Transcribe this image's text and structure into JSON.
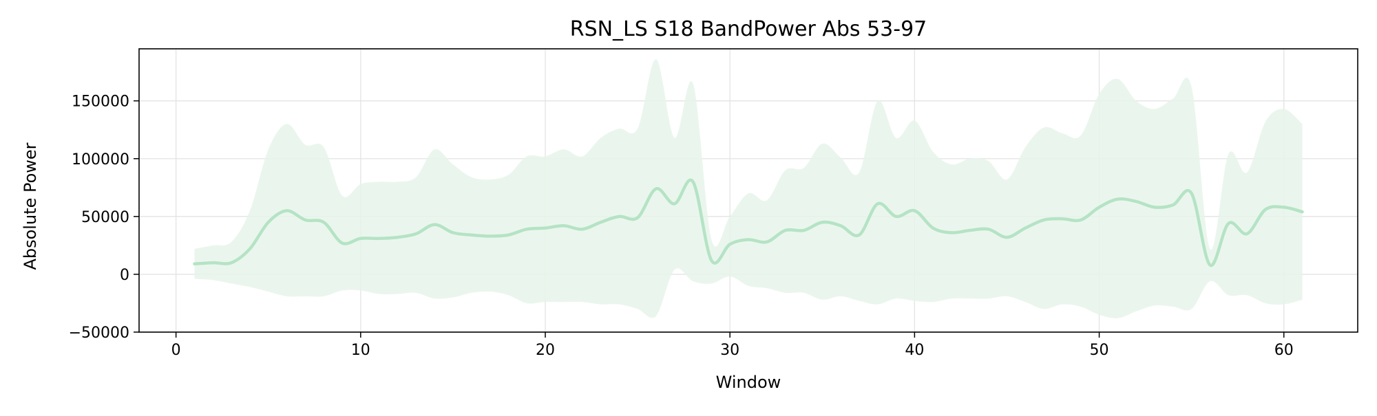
{
  "chart_data": {
    "type": "line",
    "title": "RSN_LS S18 BandPower Abs 53-97",
    "xlabel": "Window",
    "ylabel": "Absolute Power",
    "xlim": [
      -2,
      64
    ],
    "ylim": [
      -50000,
      195000
    ],
    "x_ticks": [
      0,
      10,
      20,
      30,
      40,
      50,
      60
    ],
    "x_tick_labels": [
      "0",
      "10",
      "20",
      "30",
      "40",
      "50",
      "60"
    ],
    "y_ticks": [
      -50000,
      0,
      50000,
      100000,
      150000
    ],
    "y_tick_labels": [
      "−50000",
      "0",
      "50000",
      "100000",
      "150000"
    ],
    "grid": true,
    "legend": "none",
    "colors": {
      "line": "#b5e3c5",
      "band": "#e6f4ea",
      "grid": "#e3e3e3",
      "axis": "#000000"
    },
    "series": [
      {
        "x": [
          1,
          2,
          3,
          4,
          5,
          6,
          7,
          8,
          9,
          10,
          11,
          12,
          13,
          14,
          15,
          16,
          17,
          18,
          19,
          20,
          21,
          22,
          23,
          24,
          25,
          26,
          27,
          28,
          29,
          30,
          31,
          32,
          33,
          34,
          35,
          36,
          37,
          38,
          39,
          40,
          41,
          42,
          43,
          44,
          45,
          46,
          47,
          48,
          49,
          50,
          51,
          52,
          53,
          54,
          55,
          56,
          57,
          58,
          59,
          60,
          61
        ],
        "mean": [
          9000,
          10000,
          10000,
          22000,
          45000,
          55000,
          47000,
          45000,
          27000,
          31000,
          31000,
          32000,
          35000,
          43000,
          36000,
          34000,
          33000,
          34000,
          39000,
          40000,
          42000,
          39000,
          45000,
          50000,
          49000,
          74000,
          61000,
          80000,
          12000,
          26000,
          30000,
          28000,
          38000,
          38000,
          45000,
          42000,
          34000,
          61000,
          50000,
          55000,
          40000,
          36000,
          38000,
          39000,
          32000,
          40000,
          47000,
          48000,
          47000,
          58000,
          65000,
          63000,
          58000,
          60000,
          70000,
          8000,
          44000,
          35000,
          56000,
          58000,
          54000
        ],
        "upper": [
          22000,
          25000,
          28000,
          55000,
          108000,
          130000,
          112000,
          110000,
          68000,
          78000,
          80000,
          80000,
          84000,
          108000,
          95000,
          84000,
          82000,
          86000,
          102000,
          102000,
          108000,
          102000,
          118000,
          126000,
          126000,
          186000,
          118000,
          165000,
          30000,
          50000,
          70000,
          64000,
          90000,
          92000,
          113000,
          101000,
          88000,
          150000,
          118000,
          133000,
          106000,
          95000,
          100000,
          98000,
          82000,
          110000,
          127000,
          122000,
          120000,
          156000,
          169000,
          150000,
          143000,
          152000,
          162000,
          22000,
          104000,
          88000,
          132000,
          143000,
          130000
        ],
        "lower": [
          -4000,
          -5000,
          -8000,
          -11000,
          -15000,
          -19000,
          -19000,
          -19000,
          -14000,
          -14000,
          -17000,
          -17000,
          -16000,
          -21000,
          -20000,
          -16000,
          -15000,
          -18000,
          -25000,
          -24000,
          -24000,
          -24000,
          -26000,
          -26000,
          -30000,
          -36000,
          4000,
          -6000,
          -8000,
          -2000,
          -10000,
          -12000,
          -16000,
          -16000,
          -22000,
          -19000,
          -23000,
          -26000,
          -21000,
          -23000,
          -24000,
          -21000,
          -21000,
          -21000,
          -19000,
          -24000,
          -30000,
          -26000,
          -28000,
          -35000,
          -38000,
          -32000,
          -27000,
          -28000,
          -30000,
          -6000,
          -18000,
          -18000,
          -25000,
          -26000,
          -22000
        ]
      }
    ]
  }
}
